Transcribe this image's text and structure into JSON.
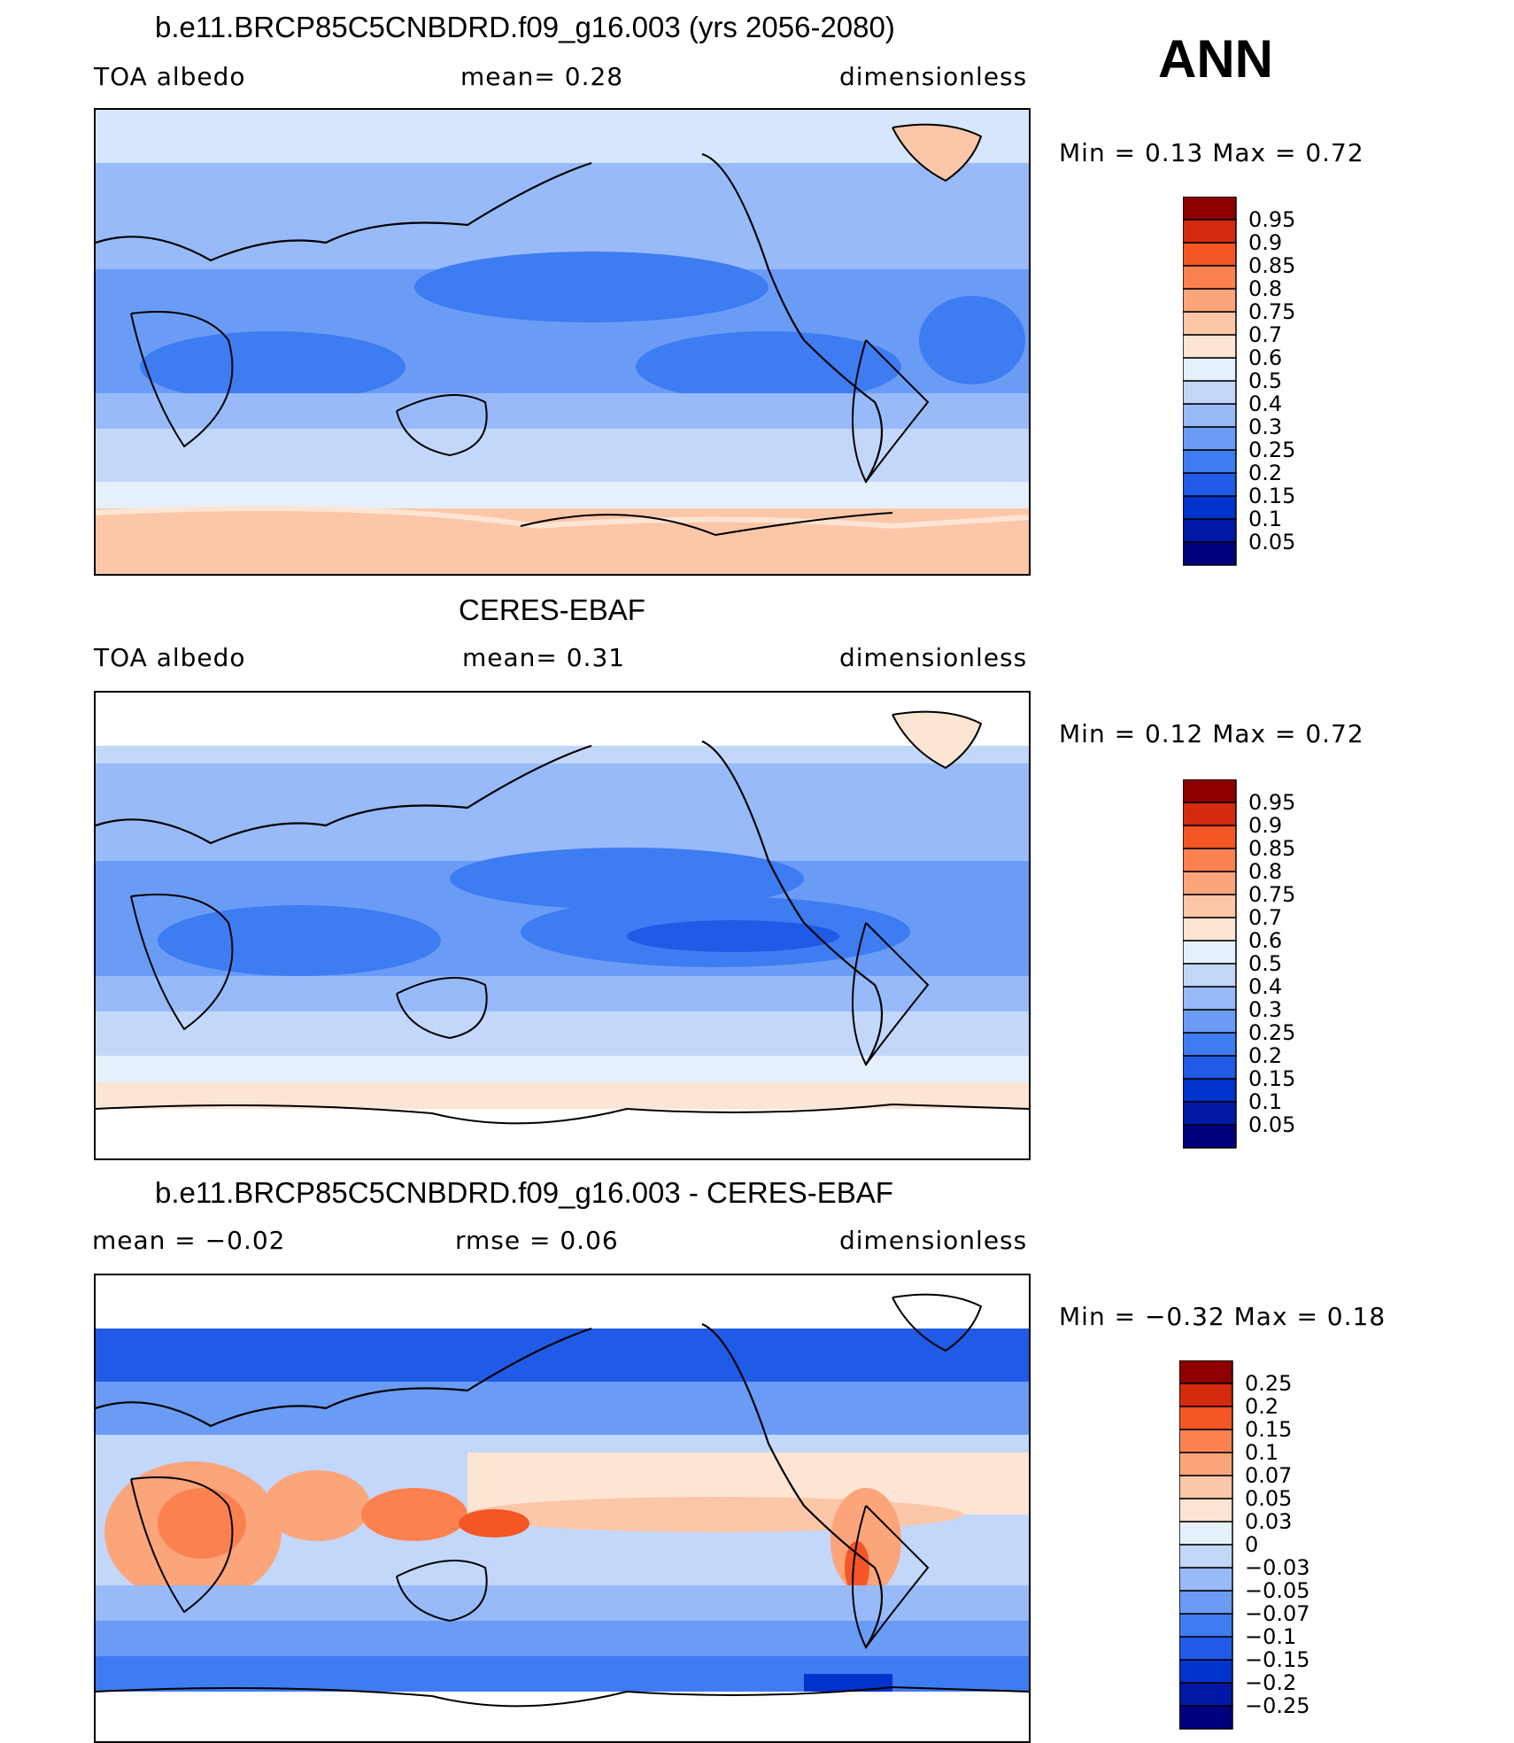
{
  "season": "ANN",
  "panels": [
    {
      "title": "b.e11.BRCP85C5CNBDRD.f09_g16.003 (yrs 2056-2080)",
      "left": "TOA albedo",
      "center": "mean=    0.28",
      "right": "dimensionless",
      "minmax": "Min =     0.13  Max =     0.72"
    },
    {
      "title": "CERES-EBAF",
      "left": "TOA albedo",
      "center": "mean=    0.31",
      "right": "dimensionless",
      "minmax": "Min =     0.12  Max =     0.72"
    },
    {
      "title": "b.e11.BRCP85C5CNBDRD.f09_g16.003 - CERES-EBAF",
      "left": "mean =   −0.02",
      "center": "rmse =    0.06",
      "right": "dimensionless",
      "minmax": "Min =   −0.32  Max =    0.18"
    }
  ],
  "chart_data": [
    {
      "type": "heatmap",
      "title": "b.e11.BRCP85C5CNBDRD.f09_g16.003 (yrs 2056-2080)",
      "variable": "TOA albedo",
      "units": "dimensionless",
      "mean": 0.28,
      "min": 0.13,
      "max": 0.72,
      "levels": [
        "0.05",
        "0.1",
        "0.15",
        "0.2",
        "0.25",
        "0.3",
        "0.4",
        "0.5",
        "0.6",
        "0.7",
        "0.75",
        "0.8",
        "0.85",
        "0.9",
        "0.95"
      ],
      "colors": [
        "#00007f",
        "#0018a6",
        "#0032cc",
        "#1f5be6",
        "#3e7cf2",
        "#6a9cf6",
        "#98baf8",
        "#c3d7fa",
        "#e6f0fd",
        "#fde5d4",
        "#fcc7a8",
        "#fca57a",
        "#fb8250",
        "#f45626",
        "#d42a0e",
        "#8e0000"
      ]
    },
    {
      "type": "heatmap",
      "title": "CERES-EBAF",
      "variable": "TOA albedo",
      "units": "dimensionless",
      "mean": 0.31,
      "min": 0.12,
      "max": 0.72,
      "levels": [
        "0.05",
        "0.1",
        "0.15",
        "0.2",
        "0.25",
        "0.3",
        "0.4",
        "0.5",
        "0.6",
        "0.7",
        "0.75",
        "0.8",
        "0.85",
        "0.9",
        "0.95"
      ],
      "colors": [
        "#00007f",
        "#0018a6",
        "#0032cc",
        "#1f5be6",
        "#3e7cf2",
        "#6a9cf6",
        "#98baf8",
        "#c3d7fa",
        "#e6f0fd",
        "#fde5d4",
        "#fcc7a8",
        "#fca57a",
        "#fb8250",
        "#f45626",
        "#d42a0e",
        "#8e0000"
      ]
    },
    {
      "type": "heatmap",
      "title": "b.e11.BRCP85C5CNBDRD.f09_g16.003 - CERES-EBAF",
      "units": "dimensionless",
      "mean": -0.02,
      "rmse": 0.06,
      "min": -0.32,
      "max": 0.18,
      "levels": [
        "−0.25",
        "−0.2",
        "−0.15",
        "−0.1",
        "−0.07",
        "−0.05",
        "−0.03",
        "0",
        "0.03",
        "0.05",
        "0.07",
        "0.1",
        "0.15",
        "0.2",
        "0.25"
      ],
      "colors": [
        "#00007f",
        "#0018a6",
        "#0032cc",
        "#1f5be6",
        "#3e7cf2",
        "#6a9cf6",
        "#98baf8",
        "#c3d7fa",
        "#e6f0fd",
        "#fde5d4",
        "#fcc7a8",
        "#fca57a",
        "#fb8250",
        "#f45626",
        "#d42a0e",
        "#8e0000"
      ]
    }
  ]
}
